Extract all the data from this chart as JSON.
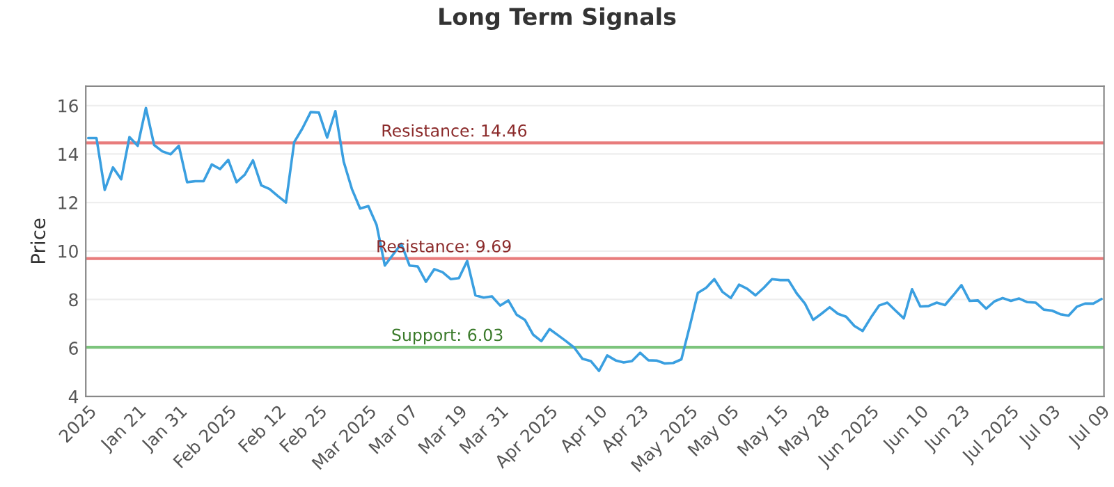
{
  "chart_data": {
    "type": "line",
    "title": "Long Term Signals",
    "ylabel": "Price",
    "categories": [
      "2025",
      null,
      null,
      null,
      null,
      null,
      "Jan 21",
      null,
      null,
      null,
      null,
      "Jan 31",
      null,
      null,
      null,
      null,
      null,
      "Feb 2025",
      null,
      null,
      null,
      null,
      null,
      "Feb 12",
      null,
      null,
      null,
      null,
      "Feb 25",
      null,
      null,
      null,
      null,
      null,
      "Mar 2025",
      null,
      null,
      null,
      null,
      "Mar 07",
      null,
      null,
      null,
      null,
      null,
      "Mar 19",
      null,
      null,
      null,
      null,
      "Mar 31",
      null,
      null,
      null,
      null,
      null,
      "Apr 2025",
      null,
      null,
      null,
      null,
      null,
      "Apr 10",
      null,
      null,
      null,
      null,
      "Apr 23",
      null,
      null,
      null,
      null,
      null,
      "May 2025",
      null,
      null,
      null,
      null,
      "May 05",
      null,
      null,
      null,
      null,
      null,
      "May 15",
      null,
      null,
      null,
      null,
      "May 28",
      null,
      null,
      null,
      null,
      null,
      "Jun 2025",
      null,
      null,
      null,
      null,
      null,
      "Jun 10",
      null,
      null,
      null,
      null,
      "Jun 23",
      null,
      null,
      null,
      null,
      null,
      "Jul 2025",
      null,
      null,
      null,
      null,
      "Jul 03",
      null,
      null,
      null,
      null,
      null,
      "Jul 09"
    ],
    "series": [
      {
        "color": "#3a9fe0",
        "values": [
          14.66,
          14.66,
          12.52,
          13.45,
          12.96,
          14.7,
          14.34,
          15.9,
          14.37,
          14.11,
          13.99,
          14.34,
          12.84,
          12.88,
          12.88,
          13.57,
          13.38,
          13.76,
          12.84,
          13.15,
          13.74,
          12.71,
          12.56,
          12.27,
          12.0,
          14.49,
          15.06,
          15.73,
          15.71,
          14.68,
          15.77,
          13.7,
          12.56,
          11.75,
          11.85,
          11.08,
          9.4,
          9.85,
          10.3,
          9.4,
          9.36,
          8.73,
          9.25,
          9.13,
          8.84,
          8.88,
          9.59,
          8.17,
          8.08,
          8.13,
          7.75,
          7.96,
          7.37,
          7.16,
          6.55,
          6.28,
          6.78,
          6.53,
          6.28,
          6.01,
          5.55,
          5.46,
          5.05,
          5.69,
          5.49,
          5.4,
          5.46,
          5.8,
          5.49,
          5.48,
          5.36,
          5.38,
          5.53,
          6.87,
          8.27,
          8.48,
          8.84,
          8.31,
          8.06,
          8.61,
          8.44,
          8.17,
          8.48,
          8.84,
          8.8,
          8.8,
          8.25,
          7.83,
          7.16,
          7.41,
          7.68,
          7.41,
          7.29,
          6.91,
          6.7,
          7.25,
          7.75,
          7.87,
          7.54,
          7.22,
          8.42,
          7.71,
          7.73,
          7.87,
          7.77,
          8.17,
          8.59,
          7.94,
          7.96,
          7.62,
          7.92,
          8.06,
          7.94,
          8.04,
          7.89,
          7.87,
          7.58,
          7.54,
          7.39,
          7.33,
          7.7,
          7.83,
          7.83,
          8.02
        ]
      }
    ],
    "ylim": [
      4,
      16.8
    ],
    "yticks": [
      4,
      6,
      8,
      10,
      12,
      14,
      16
    ],
    "grid": "y",
    "ref_lines": [
      {
        "axis": "y",
        "value": 14.46,
        "label": "Resistance: 14.46",
        "color": "#e87c7c"
      },
      {
        "axis": "y",
        "value": 9.69,
        "label": "Resistance: 9.69",
        "color": "#e87c7c"
      },
      {
        "axis": "y",
        "value": 6.03,
        "label": "Support: 6.03",
        "color": "#7cc47c"
      }
    ]
  }
}
